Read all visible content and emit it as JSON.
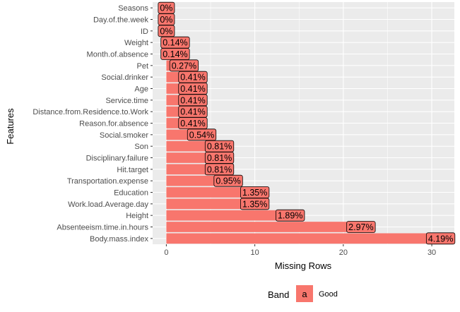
{
  "chart_data": {
    "type": "bar",
    "orientation": "horizontal",
    "categories": [
      "Seasons",
      "Day.of.the.week",
      "ID",
      "Weight",
      "Month.of.absence",
      "Pet",
      "Social.drinker",
      "Age",
      "Service.time",
      "Distance.from.Residence.to.Work",
      "Reason.for.absence",
      "Social.smoker",
      "Son",
      "Disciplinary.failure",
      "Hit.target",
      "Transportation.expense",
      "Education",
      "Work.load.Average.day",
      "Height",
      "Absenteeism.time.in.hours",
      "Body.mass.index"
    ],
    "values": [
      0,
      0,
      0,
      1,
      1,
      2,
      3,
      3,
      3,
      3,
      3,
      4,
      6,
      6,
      6,
      7,
      10,
      10,
      14,
      22,
      31
    ],
    "labels": [
      "0%",
      "0%",
      "0%",
      "0.14%",
      "0.14%",
      "0.27%",
      "0.41%",
      "0.41%",
      "0.41%",
      "0.41%",
      "0.41%",
      "0.54%",
      "0.81%",
      "0.81%",
      "0.81%",
      "0.95%",
      "1.35%",
      "1.35%",
      "1.89%",
      "2.97%",
      "4.19%"
    ],
    "xlabel": "Missing Rows",
    "ylabel": "Features",
    "xlim": [
      -1.55,
      32.55
    ],
    "xticks": [
      0,
      10,
      20,
      30
    ],
    "grid": true,
    "legend_placement": "bottom",
    "legend": {
      "title": "Band",
      "key_glyph": "a",
      "items": [
        {
          "name": "Good",
          "color": "#F8766D"
        }
      ]
    },
    "colors": {
      "bar": "#F8766D",
      "panel": "#EBEBEB",
      "grid": "#FFFFFF"
    }
  }
}
